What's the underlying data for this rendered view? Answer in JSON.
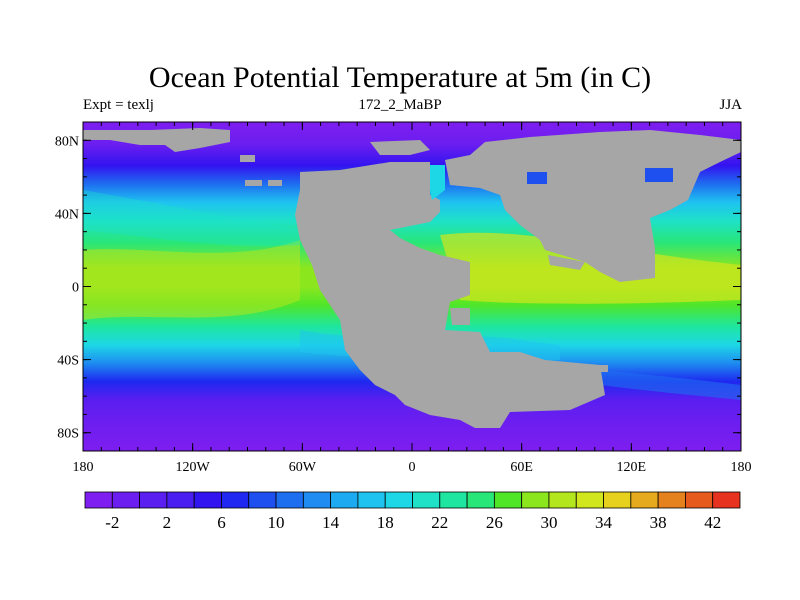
{
  "title": "Ocean Potential Temperature at 5m (in C)",
  "subtitle_left": "Expt = texlj",
  "subtitle_center": "172_2_MaBP",
  "subtitle_right": "JJA",
  "map": {
    "projection": "cylindrical-equidistant",
    "lon_range": [
      -180,
      180
    ],
    "lat_range": [
      -90,
      90
    ],
    "x_tick_labels": [
      {
        "lon": -180,
        "label": "180"
      },
      {
        "lon": -120,
        "label": "120W"
      },
      {
        "lon": -60,
        "label": "60W"
      },
      {
        "lon": 0,
        "label": "0"
      },
      {
        "lon": 60,
        "label": "60E"
      },
      {
        "lon": 120,
        "label": "120E"
      },
      {
        "lon": 180,
        "label": "180"
      }
    ],
    "y_tick_labels": [
      {
        "lat": 80,
        "label": "80N"
      },
      {
        "lat": 40,
        "label": "40N"
      },
      {
        "lat": 0,
        "label": "0"
      },
      {
        "lat": -40,
        "label": "40S"
      },
      {
        "lat": -80,
        "label": "80S"
      }
    ],
    "land_color": "#a6a6a6",
    "temperature_profile_by_lat": [
      {
        "lat": 90,
        "temp": -3
      },
      {
        "lat": 78,
        "temp": -1
      },
      {
        "lat": 66,
        "temp": 4
      },
      {
        "lat": 56,
        "temp": 10
      },
      {
        "lat": 46,
        "temp": 16
      },
      {
        "lat": 36,
        "temp": 21
      },
      {
        "lat": 24,
        "temp": 25
      },
      {
        "lat": 10,
        "temp": 28
      },
      {
        "lat": 0,
        "temp": 28
      },
      {
        "lat": -10,
        "temp": 27
      },
      {
        "lat": -22,
        "temp": 23
      },
      {
        "lat": -32,
        "temp": 18
      },
      {
        "lat": -42,
        "temp": 12
      },
      {
        "lat": -52,
        "temp": 6
      },
      {
        "lat": -62,
        "temp": 1
      },
      {
        "lat": -74,
        "temp": -2
      },
      {
        "lat": -90,
        "temp": -3
      }
    ]
  },
  "colorbar": {
    "levels": [
      -4,
      -2,
      0,
      2,
      4,
      6,
      8,
      10,
      12,
      14,
      16,
      18,
      20,
      22,
      24,
      26,
      28,
      30,
      32,
      34,
      36,
      38,
      40,
      42,
      44
    ],
    "colors": [
      "#7e1ef0",
      "#6c1ef0",
      "#5a1ef0",
      "#4a1ef0",
      "#3214f0",
      "#1e28f0",
      "#1e50f0",
      "#1e6ef0",
      "#1e8cf0",
      "#1eaaf0",
      "#1ec3f0",
      "#1ed7e6",
      "#1ee1c8",
      "#1ee6a0",
      "#28e678",
      "#50e628",
      "#8ce61e",
      "#b4e61e",
      "#d2e61e",
      "#e6d21e",
      "#e6aa1e",
      "#e6821e",
      "#e65a1e",
      "#e6321e"
    ],
    "labels": [
      "-2",
      "2",
      "6",
      "10",
      "14",
      "18",
      "22",
      "26",
      "30",
      "34",
      "38",
      "42"
    ]
  }
}
